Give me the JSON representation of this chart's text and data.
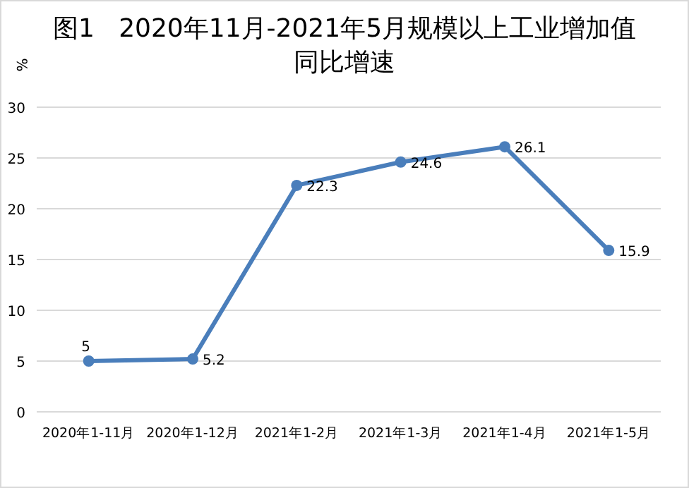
{
  "chart_data": {
    "type": "line",
    "title": "图1   2020年11月-2021年5月规模以上工业增加值同比增速",
    "ylabel": "%",
    "categories": [
      "2020年1-11月",
      "2020年1-12月",
      "2021年1-2月",
      "2021年1-3月",
      "2021年1-4月",
      "2021年1-5月"
    ],
    "series": [
      {
        "color": "#4a7ebb",
        "values": [
          5,
          5.2,
          22.3,
          24.6,
          26.1,
          15.9
        ]
      }
    ],
    "ylim": [
      0,
      30
    ],
    "yticks": [
      0,
      5,
      10,
      15,
      20,
      25,
      30
    ],
    "grid": "y",
    "marker": "circle",
    "line_style": "solid",
    "data_labels": true
  }
}
